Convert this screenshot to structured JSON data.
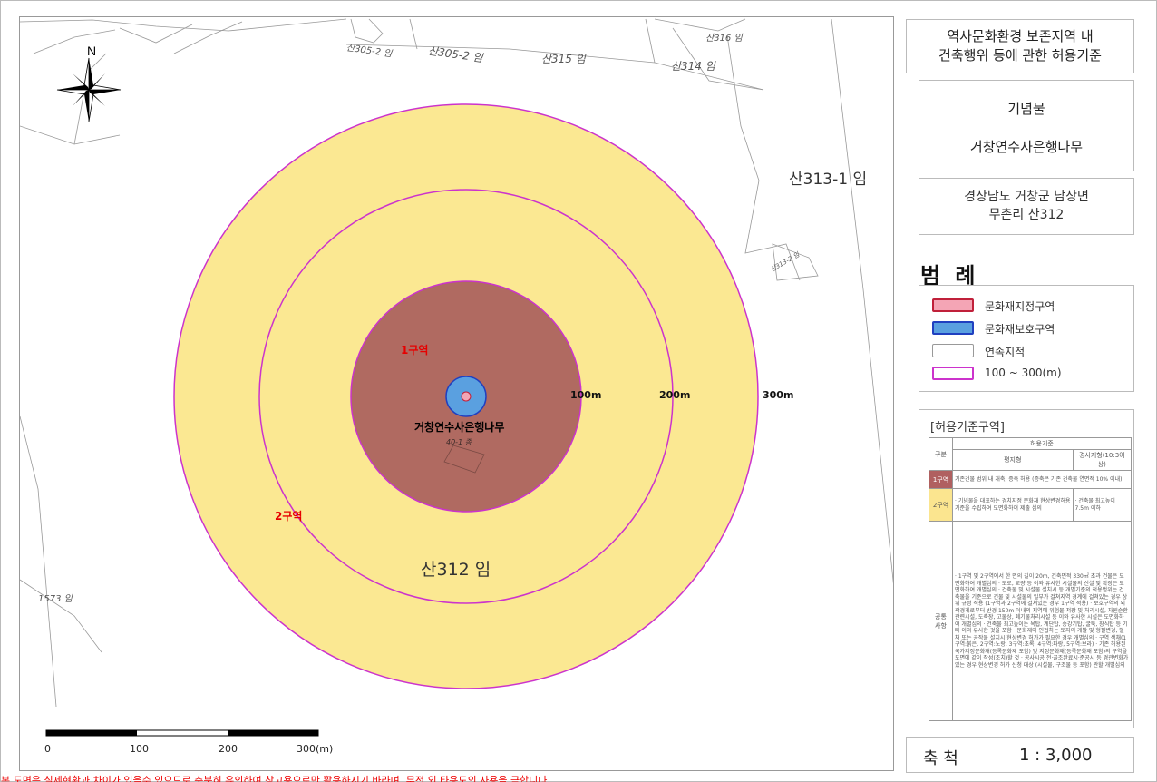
{
  "title": {
    "line1": "역사문화환경 보존지역 내",
    "line2": "건축행위 등에 관한 허용기준"
  },
  "monument": {
    "type": "기념물",
    "name": "거창연수사은행나무"
  },
  "address": {
    "line1": "경상남도 거창군 남상면",
    "line2": "무촌리 산312"
  },
  "legend": {
    "title": "범 례",
    "items": [
      {
        "label": "문화재지정구역",
        "color": "#f4a5b5",
        "border": "#c0203a"
      },
      {
        "label": "문화재보호구역",
        "color": "#5aa0e0",
        "border": "#2040c0"
      },
      {
        "label": "연속지적",
        "color": "#ffffff",
        "border": "#999999"
      },
      {
        "label": "100 ~ 300(m)",
        "color": "#ffffff",
        "border": "#cc33cc"
      }
    ]
  },
  "criteria": {
    "title": "[허용기준구역]",
    "head": {
      "zone": "구분",
      "group": "허용기준",
      "flat": "평지형",
      "slope": "경사지형(10:3이상)"
    },
    "zone1": {
      "name": "1구역",
      "text": "기존건물 범위 내 개축, 증축 허용 (증축은 기존 건축물 연면적 10% 이내)"
    },
    "zone2": {
      "name": "2구역",
      "text": "· 기념물을 대표하는 경치지정 문화재 현상변경허용기준을 수립하여 도면화하여 제출 심의",
      "slope": "· 건축물 최고높이 7.5m 이하"
    },
    "common": {
      "name": "공통 사항",
      "text": "· 1구역 및 2구역에서 한 면의 길이 20m, 건축면적 330㎡ 초과 건물은 도면화하여 개별심의 · 도로, 교량 등 이와 유사한 시설물의 신설 및 확장은 도면화하여 개별심의 · 건축물 및 시설물 설치시 등 개별기준의 적용범위는 건축물을 기준으로 건물 및 시설물의 일부가 걸쳐지역 경계에 걸쳐있는 경우 상위 규정 적용 (1구역과 2구역에 걸쳐있는 경우 1구역 적용) · 보호구역의 외곽경계로부터 반경 150m 이내의 지역에 위험물 저장 및 처리시설, 자원순환 관련시설, 도축장, 고물상, 폐기물처리시설 등 이와 유사한 시설은 도면화하여 개별심의 · 건축물 최고높이는 옥탑, 계단탑, 승강기탑, 굴뚝, 장식탑 등 기타 이와 유사한 것을 포함 · 문화재와 인접하는 토지의 개발 및 형질변경, 벌채 또는 공작물 설치시 현상변경 허가가 필요한 경우 개별심의 · 구역 색채(1구역:붉은, 2구역:노랑, 3구역:초록, 4구역:파랑, 5구역:보라) · 기존 허용된 국가지정문화재(등록문화재 포함) 및 지정문화재(등록문화재 포함)의 구역을 도면에 같이 작성(조치)할 것 · 공사시공 전·골조완료시·준공시 등 경관변화가 있는 경우 현상변경 허가 신청 대상 (시설물, 구조물 등 포함) 관할 개별심의"
    }
  },
  "map": {
    "parcels": [
      {
        "text": "산305-2 임",
        "size": "sm"
      },
      {
        "text": "산305-2 임",
        "size": "sm"
      },
      {
        "text": "산315 임",
        "size": "sm"
      },
      {
        "text": "산316 임",
        "size": "sm"
      },
      {
        "text": "산314 임",
        "size": "sm"
      },
      {
        "text": "산313-1 임",
        "size": "big"
      },
      {
        "text": "산312 임",
        "size": "big"
      },
      {
        "text": "1573 임",
        "size": "sm"
      },
      {
        "text": "40-1 종",
        "size": "sm"
      },
      {
        "text": "산313-2 임",
        "size": "sm"
      }
    ],
    "zones": {
      "zone1": "1구역",
      "zone2": "2구역"
    },
    "rings": {
      "r100": "100m",
      "r200": "200m",
      "r300": "300m"
    },
    "tree_name": "거창연수사은행나무",
    "north": "N",
    "colors": {
      "outer": "#fbe892",
      "inner": "#fbe892",
      "zone1": "#b06a61",
      "ring": "#cc33cc",
      "protect": "#5aa0e0",
      "designate": "#f4a5b5"
    }
  },
  "scale_bar": {
    "ticks": [
      "0",
      "100",
      "200",
      "300(m)"
    ]
  },
  "scale": {
    "label": "축 척",
    "value": "1 : 3,000"
  },
  "disclaimer": "본 도면은 실제현황과 차이가 있을수 있으므로 충분히 유의하여 참고용으로만 활용하시기 바라며, 무전 외 타용도의 사용을 금합니다."
}
